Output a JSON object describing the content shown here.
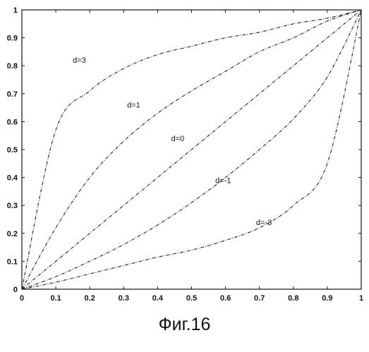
{
  "chart_data": {
    "type": "line",
    "title": "",
    "xlabel": "",
    "ylabel": "",
    "xlim": [
      0,
      1
    ],
    "ylim": [
      0,
      1
    ],
    "grid": false,
    "x_ticks": [
      "0",
      "0.1",
      "0.2",
      "0.3",
      "0.4",
      "0.5",
      "0.6",
      "0.7",
      "0.8",
      "0.9",
      "1"
    ],
    "y_ticks": [
      "0",
      "0.1",
      "0.2",
      "0.3",
      "0.4",
      "0.5",
      "0.6",
      "0.7",
      "0.8",
      "0.9",
      "1"
    ],
    "x": [
      0,
      0.1,
      0.2,
      0.3,
      0.4,
      0.5,
      0.6,
      0.7,
      0.8,
      0.9,
      1
    ],
    "series": [
      {
        "name": "d=3",
        "values": [
          0,
          0.57,
          0.71,
          0.79,
          0.84,
          0.87,
          0.9,
          0.92,
          0.95,
          0.97,
          1
        ]
      },
      {
        "name": "d=1",
        "values": [
          0,
          0.22,
          0.4,
          0.53,
          0.63,
          0.71,
          0.78,
          0.85,
          0.9,
          0.96,
          1
        ]
      },
      {
        "name": "d=0",
        "values": [
          0,
          0.1,
          0.2,
          0.3,
          0.4,
          0.5,
          0.6,
          0.7,
          0.8,
          0.9,
          1
        ]
      },
      {
        "name": "d=-1",
        "values": [
          0,
          0.045,
          0.1,
          0.16,
          0.23,
          0.31,
          0.4,
          0.5,
          0.61,
          0.76,
          1
        ]
      },
      {
        "name": "d=-3",
        "values": [
          0,
          0.025,
          0.055,
          0.085,
          0.115,
          0.14,
          0.175,
          0.22,
          0.3,
          0.45,
          1
        ]
      }
    ],
    "annotations": [
      {
        "text": "d=3",
        "x": 0.15,
        "y": 0.81
      },
      {
        "text": "d=1",
        "x": 0.31,
        "y": 0.65
      },
      {
        "text": "d=0",
        "x": 0.44,
        "y": 0.53
      },
      {
        "text": "d=-1",
        "x": 0.57,
        "y": 0.38
      },
      {
        "text": "d=-3",
        "x": 0.69,
        "y": 0.23
      }
    ]
  },
  "caption": "Фиг.16"
}
